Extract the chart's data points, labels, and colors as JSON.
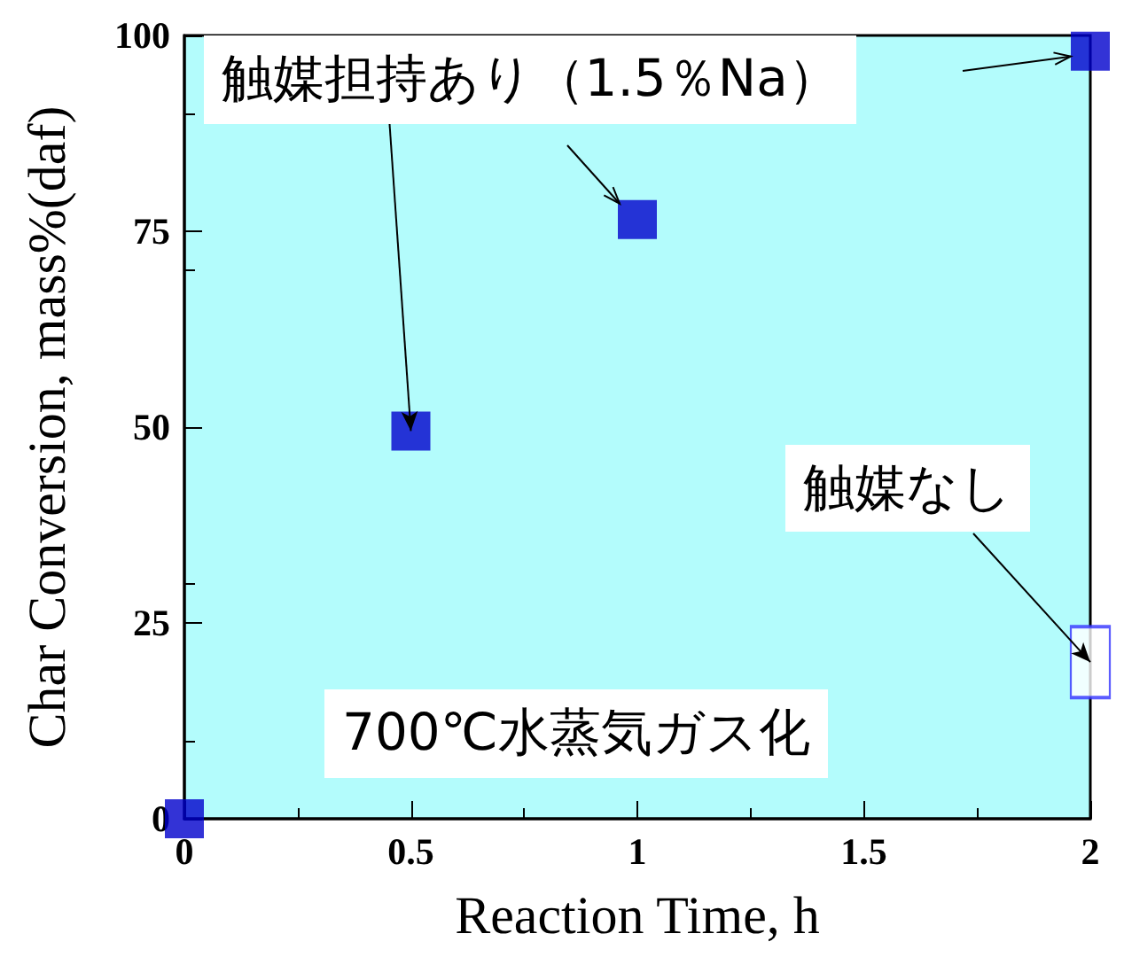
{
  "chart_data": {
    "type": "scatter",
    "xlabel": "Reaction Time, h",
    "ylabel": "Char Conversion, mass%(daf)",
    "xlim": [
      0,
      2
    ],
    "xticks": [
      0,
      0.5,
      1,
      1.5,
      2
    ],
    "ylim": [
      0,
      100
    ],
    "yticks": [
      0,
      25,
      50,
      75,
      100
    ],
    "grid": false,
    "marker": "square",
    "series": [
      {
        "color": "#0000cc",
        "x": [
          0,
          0.5,
          1,
          2
        ],
        "values": [
          0,
          49.5,
          76.5,
          98
        ]
      },
      {
        "color": "#3333ff",
        "x": [
          2
        ],
        "values": [
          20
        ]
      }
    ],
    "annotations": [
      {
        "text": "触媒担持あり（1.5％Na）",
        "x": 0.5,
        "y": 49.5
      },
      {
        "text": "触媒なし",
        "x": 2,
        "y": 20
      },
      "700℃水蒸気ガス化"
    ]
  }
}
